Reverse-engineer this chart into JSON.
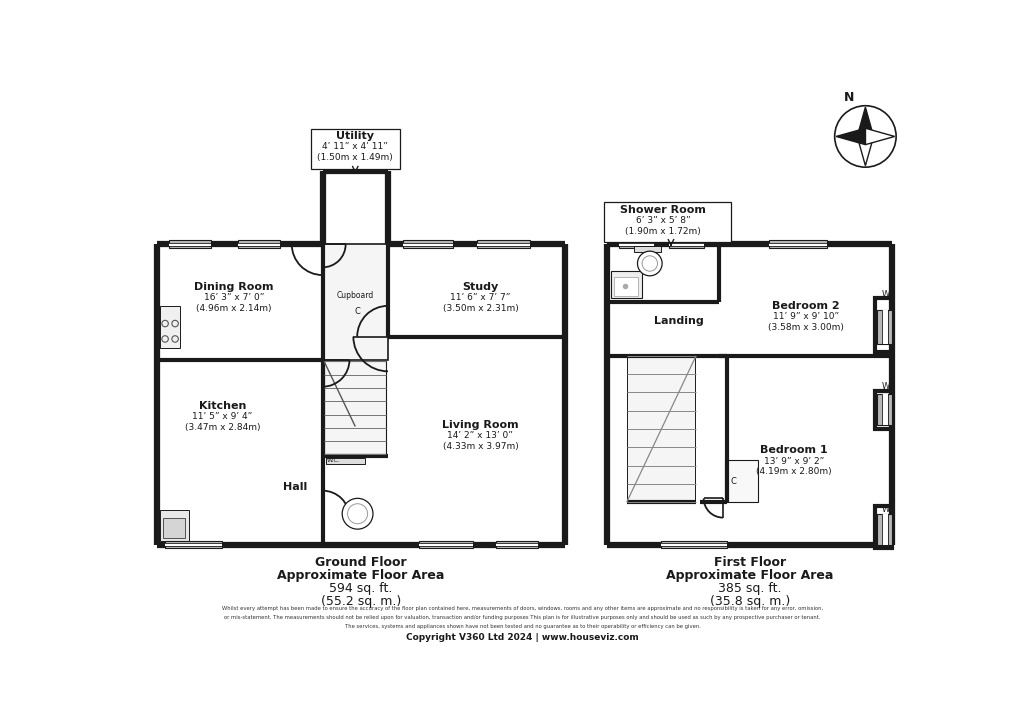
{
  "bg_color": "#ffffff",
  "wall_color": "#1a1a1a",
  "rooms": {
    "dining_room": {
      "name": "Dining Room",
      "dim1": "16’ 3” x 7’ 0”",
      "dim2": "(4.96m x 2.14m)"
    },
    "kitchen": {
      "name": "Kitchen",
      "dim1": "11’ 5” x 9’ 4”",
      "dim2": "(3.47m x 2.84m)"
    },
    "hall": {
      "name": "Hall"
    },
    "study": {
      "name": "Study",
      "dim1": "11’ 6” x 7’ 7”",
      "dim2": "(3.50m x 2.31m)"
    },
    "living_room": {
      "name": "Living Room",
      "dim1": "14’ 2” x 13’ 0”",
      "dim2": "(4.33m x 3.97m)"
    },
    "utility": {
      "name": "Utility",
      "dim1": "4’ 11” x 4’ 11”",
      "dim2": "(1.50m x 1.49m)"
    },
    "shower_room": {
      "name": "Shower Room",
      "dim1": "6’ 3” x 5’ 8”",
      "dim2": "(1.90m x 1.72m)"
    },
    "bedroom2": {
      "name": "Bedroom 2",
      "dim1": "11’ 9” x 9’ 10”",
      "dim2": "(3.58m x 3.00m)"
    },
    "bedroom1": {
      "name": "Bedroom 1",
      "dim1": "13’ 9” x 9’ 2”",
      "dim2": "(4.19m x 2.80m)"
    },
    "landing": {
      "name": "Landing"
    },
    "wc": {
      "name": "W.C."
    },
    "cupboard": {
      "name": "Cupboard"
    }
  },
  "gf_line1": "Ground Floor",
  "gf_line2": "Approximate Floor Area",
  "gf_line3": "594 sq. ft.",
  "gf_line4": "(55.2 sq. m.)",
  "ff_line1": "First Floor",
  "ff_line2": "Approximate Floor Area",
  "ff_line3": "385 sq. ft.",
  "ff_line4": "(35.8 sq. m.)",
  "disclaimer_line1": "Whilst every attempt has been made to ensure the accuracy of the floor plan contained here, measurements of doors, windows, rooms and any other items are approximate and no responsibility is taken for any error, omission,",
  "disclaimer_line2": "or mis-statement. The measurements should not be relied upon for valuation, transaction and/or funding purposes This plan is for illustrative purposes only and should be used as such by any prospective purchaser or tenant.",
  "disclaimer_line3": "The services, systems and appliances shown have not been tested and no guarantee as to their operability or efficiency can be given.",
  "copyright": "Copyright V360 Ltd 2024 | www.houseviz.com"
}
